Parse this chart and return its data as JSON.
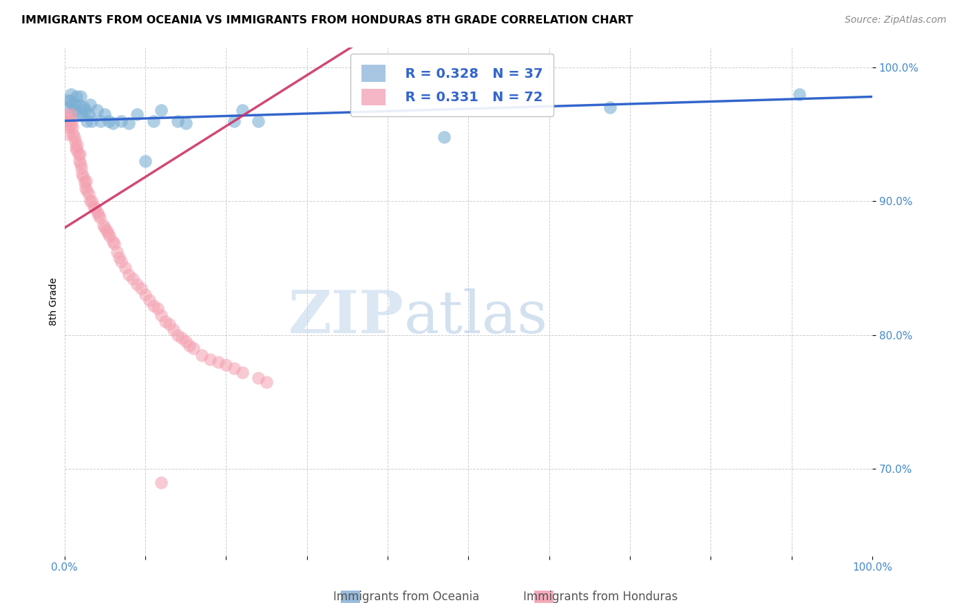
{
  "title": "IMMIGRANTS FROM OCEANIA VS IMMIGRANTS FROM HONDURAS 8TH GRADE CORRELATION CHART",
  "source": "Source: ZipAtlas.com",
  "ylabel": "8th Grade",
  "xlim": [
    0.0,
    1.0
  ],
  "ylim": [
    0.635,
    1.015
  ],
  "oceania_color": "#7BAFD4",
  "honduras_color": "#F4A0B0",
  "trendline_oceania_color": "#3366CC",
  "trendline_honduras_color": "#CC3366",
  "legend_R_oceania": "R = 0.328",
  "legend_N_oceania": "N = 37",
  "legend_R_honduras": "R = 0.331",
  "legend_N_honduras": "N = 72",
  "watermark_zip": "ZIP",
  "watermark_atlas": "atlas",
  "background_color": "#FFFFFF",
  "grid_color": "#CCCCCC",
  "oceania_x": [
    0.002,
    0.005,
    0.007,
    0.008,
    0.01,
    0.012,
    0.013,
    0.015,
    0.016,
    0.018,
    0.02,
    0.022,
    0.024,
    0.026,
    0.028,
    0.03,
    0.032,
    0.034,
    0.04,
    0.045,
    0.05,
    0.055,
    0.06,
    0.07,
    0.08,
    0.09,
    0.1,
    0.11,
    0.12,
    0.14,
    0.15,
    0.21,
    0.22,
    0.24,
    0.47,
    0.675,
    0.91
  ],
  "oceania_y": [
    0.97,
    0.975,
    0.975,
    0.98,
    0.972,
    0.968,
    0.972,
    0.978,
    0.965,
    0.972,
    0.978,
    0.965,
    0.97,
    0.968,
    0.96,
    0.965,
    0.972,
    0.96,
    0.968,
    0.96,
    0.965,
    0.96,
    0.958,
    0.96,
    0.958,
    0.965,
    0.93,
    0.96,
    0.968,
    0.96,
    0.958,
    0.96,
    0.968,
    0.96,
    0.948,
    0.97,
    0.98
  ],
  "honduras_x": [
    0.001,
    0.002,
    0.003,
    0.004,
    0.005,
    0.006,
    0.007,
    0.008,
    0.009,
    0.01,
    0.011,
    0.012,
    0.013,
    0.014,
    0.015,
    0.016,
    0.017,
    0.018,
    0.019,
    0.02,
    0.021,
    0.022,
    0.023,
    0.025,
    0.026,
    0.027,
    0.028,
    0.03,
    0.032,
    0.034,
    0.036,
    0.038,
    0.04,
    0.042,
    0.044,
    0.048,
    0.05,
    0.052,
    0.054,
    0.056,
    0.06,
    0.062,
    0.065,
    0.068,
    0.07,
    0.075,
    0.08,
    0.085,
    0.09,
    0.095,
    0.1,
    0.105,
    0.11,
    0.115,
    0.12,
    0.125,
    0.13,
    0.135,
    0.14,
    0.145,
    0.15,
    0.155,
    0.16,
    0.17,
    0.18,
    0.19,
    0.2,
    0.21,
    0.22,
    0.24,
    0.25,
    0.12
  ],
  "honduras_y": [
    0.96,
    0.965,
    0.958,
    0.962,
    0.95,
    0.955,
    0.96,
    0.965,
    0.958,
    0.955,
    0.95,
    0.948,
    0.945,
    0.94,
    0.938,
    0.942,
    0.935,
    0.93,
    0.935,
    0.928,
    0.925,
    0.92,
    0.918,
    0.914,
    0.91,
    0.915,
    0.908,
    0.905,
    0.9,
    0.9,
    0.896,
    0.895,
    0.892,
    0.89,
    0.888,
    0.882,
    0.88,
    0.878,
    0.876,
    0.874,
    0.87,
    0.868,
    0.862,
    0.858,
    0.855,
    0.85,
    0.845,
    0.842,
    0.838,
    0.835,
    0.83,
    0.826,
    0.822,
    0.82,
    0.815,
    0.81,
    0.808,
    0.804,
    0.8,
    0.798,
    0.795,
    0.792,
    0.79,
    0.785,
    0.782,
    0.78,
    0.778,
    0.775,
    0.772,
    0.768,
    0.765,
    0.69
  ]
}
